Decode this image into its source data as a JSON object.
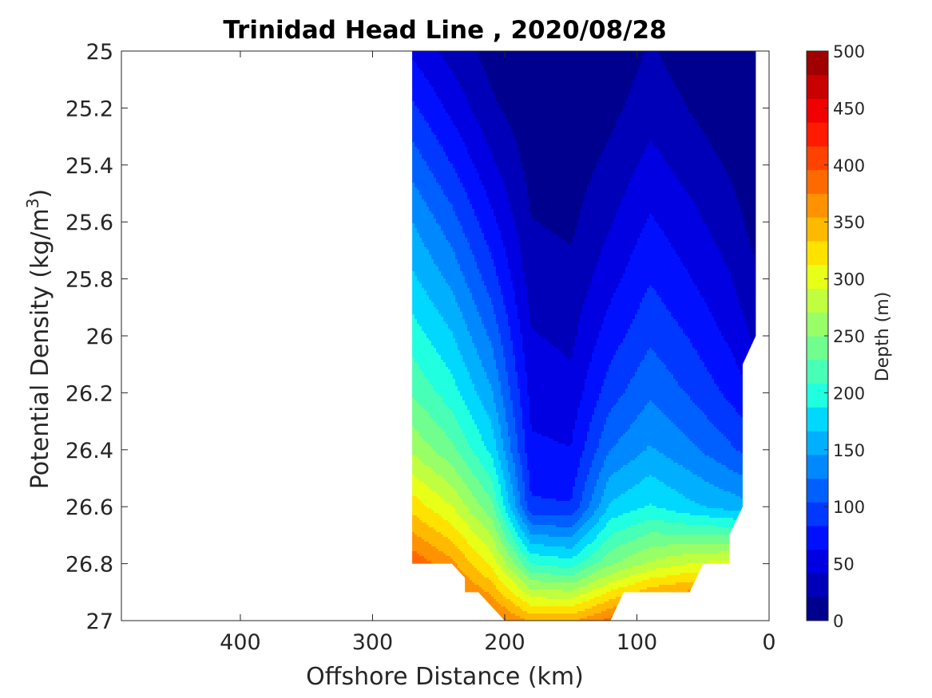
{
  "chart_data": {
    "type": "heatmap",
    "subtype": "filled-contour",
    "title": "Trinidad Head Line , 2020/08/28",
    "xlabel": "Offshore Distance (km)",
    "ylabel": "Potential Density (kg/m",
    "ylabel_sup": "3",
    "ylabel_end": ")",
    "colorbar_label": "Depth (m)",
    "x_reversed": true,
    "y_reversed": true,
    "xlim": [
      0,
      490
    ],
    "ylim": [
      25,
      27
    ],
    "x_ticks": [
      400,
      300,
      200,
      100,
      0
    ],
    "x_tick_labels": [
      "400",
      "300",
      "200",
      "100",
      "0"
    ],
    "y_ticks": [
      25,
      25.2,
      25.4,
      25.6,
      25.8,
      26,
      26.2,
      26.4,
      26.6,
      26.8,
      27
    ],
    "y_tick_labels": [
      "25",
      "25.2",
      "25.4",
      "25.6",
      "25.8",
      "26",
      "26.2",
      "26.4",
      "26.6",
      "26.8",
      "27"
    ],
    "colorbar_range": [
      0,
      500
    ],
    "colorbar_ticks": [
      0,
      50,
      100,
      150,
      200,
      250,
      300,
      350,
      400,
      450,
      500
    ],
    "colorbar_tick_labels": [
      "0",
      "50",
      "100",
      "150",
      "200",
      "250",
      "300",
      "350",
      "400",
      "450",
      "500"
    ],
    "contour_levels": [
      0,
      25,
      50,
      75,
      100,
      125,
      150,
      175,
      200,
      225,
      250,
      275,
      300,
      325,
      350,
      375,
      400,
      425,
      450,
      475,
      500
    ],
    "colormap": [
      "#00008f",
      "#0000b8",
      "#0000e2",
      "#0010ff",
      "#0038ff",
      "#0060ff",
      "#0088ff",
      "#00b0ff",
      "#00d8ff",
      "#20ffdf",
      "#48ffb7",
      "#70ff8f",
      "#98ff67",
      "#c0ff3f",
      "#e8ff17",
      "#ffe200",
      "#ffba00",
      "#ff9200",
      "#ff6a00",
      "#ff4200",
      "#ff1a00",
      "#f00000",
      "#c80000",
      "#a00000"
    ],
    "colormap_name": "jet",
    "grid": false,
    "depth_field": {
      "x": [
        270,
        240,
        210,
        180,
        150,
        120,
        90,
        60,
        30,
        10
      ],
      "y": [
        25.0,
        25.2,
        25.4,
        25.6,
        25.8,
        26.0,
        26.2,
        26.4,
        26.6,
        26.8,
        27.0
      ],
      "depth": [
        [
          70,
          40,
          15,
          3,
          2,
          5,
          28,
          12,
          3,
          0
        ],
        [
          105,
          68,
          30,
          8,
          6,
          18,
          40,
          24,
          8,
          2
        ],
        [
          140,
          100,
          55,
          16,
          12,
          32,
          58,
          40,
          22,
          8
        ],
        [
          175,
          135,
          82,
          26,
          20,
          48,
          78,
          58,
          36,
          16
        ],
        [
          205,
          168,
          112,
          38,
          32,
          66,
          98,
          76,
          52,
          28
        ],
        [
          238,
          202,
          145,
          52,
          44,
          88,
          120,
          98,
          70,
          44
        ],
        [
          272,
          236,
          178,
          66,
          58,
          114,
          146,
          122,
          94,
          72
        ],
        [
          320,
          282,
          218,
          80,
          76,
          150,
          178,
          156,
          130,
          110
        ],
        [
          390,
          350,
          282,
          105,
          102,
          205,
          228,
          206,
          190,
          178
        ],
        [
          470,
          432,
          368,
          250,
          236,
          296,
          330,
          350,
          360,
          360
        ],
        [
          510,
          500,
          470,
          420,
          420,
          460,
          500,
          510,
          510,
          510
        ]
      ],
      "data_footprint": [
        [
          270,
          25
        ],
        [
          10,
          25
        ],
        [
          10,
          26
        ],
        [
          20,
          26.1
        ],
        [
          20,
          26.6
        ],
        [
          30,
          26.7
        ],
        [
          30,
          26.8
        ],
        [
          50,
          26.8
        ],
        [
          60,
          26.9
        ],
        [
          110,
          26.9
        ],
        [
          120,
          27
        ],
        [
          200,
          27
        ],
        [
          220,
          26.9
        ],
        [
          230,
          26.9
        ],
        [
          230,
          26.85
        ],
        [
          240,
          26.8
        ],
        [
          270,
          26.8
        ]
      ]
    }
  }
}
